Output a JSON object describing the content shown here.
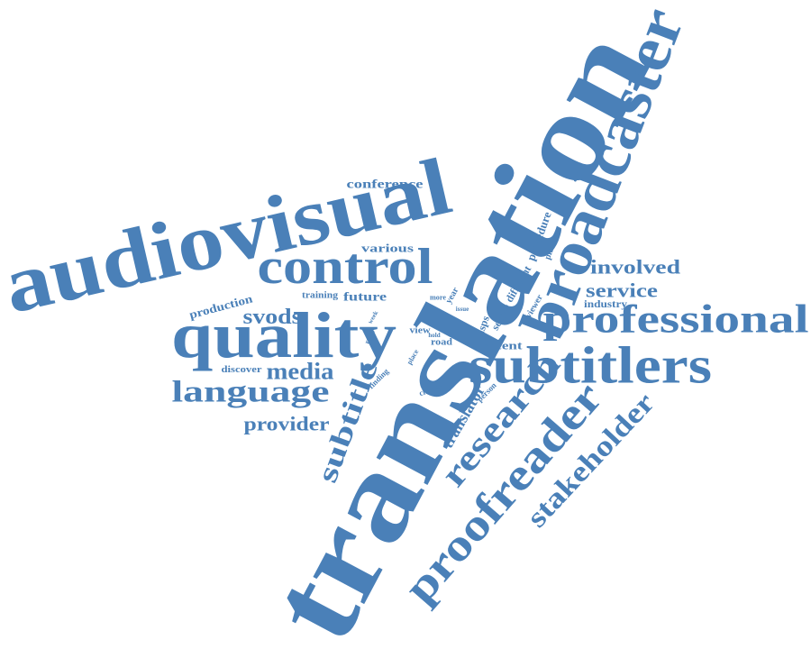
{
  "words": [
    "translation",
    "audiovisual",
    "broadcaster",
    "subtitlers",
    "professional",
    "quality",
    "control",
    "proofreader",
    "stakeholder",
    "research",
    "subtitle",
    "language",
    "media",
    "svods",
    "provider",
    "involved",
    "service",
    "industry",
    "conference",
    "various",
    "production",
    "training",
    "future",
    "more",
    "year",
    "week",
    "issue",
    "range",
    "discover",
    "view",
    "hold",
    "road",
    "place",
    "finding",
    "change",
    "lsps",
    "sector",
    "recent",
    "viewer",
    "different",
    "procedure",
    "platform",
    "person",
    "translator"
  ]
}
